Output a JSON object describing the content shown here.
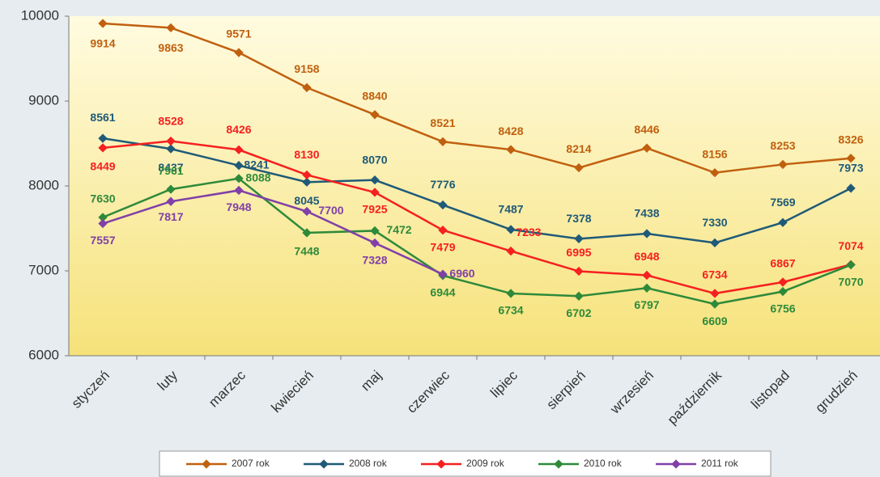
{
  "chart_data": {
    "type": "line",
    "categories": [
      "styczeń",
      "luty",
      "marzec",
      "kwiecień",
      "maj",
      "czerwiec",
      "lipiec",
      "sierpień",
      "wrzesień",
      "październik",
      "listopad",
      "grudzień"
    ],
    "series": [
      {
        "name": "2007 rok",
        "color": "#c0600f",
        "values": [
          9914,
          9863,
          9571,
          9158,
          8840,
          8521,
          8428,
          8214,
          8446,
          8156,
          8253,
          8326
        ]
      },
      {
        "name": "2008 rok",
        "color": "#1f5a78",
        "values": [
          8561,
          8437,
          8241,
          8045,
          8070,
          7776,
          7487,
          7378,
          7438,
          7330,
          7569,
          7973
        ]
      },
      {
        "name": "2009 rok",
        "color": "#f52020",
        "values": [
          8449,
          8528,
          8426,
          8130,
          7925,
          7479,
          7233,
          6995,
          6948,
          6734,
          6867,
          7074
        ]
      },
      {
        "name": "2010 rok",
        "color": "#2e8a3a",
        "values": [
          7630,
          7961,
          8088,
          7448,
          7472,
          6944,
          6734,
          6702,
          6797,
          6609,
          6756,
          7070
        ]
      },
      {
        "name": "2011 rok",
        "color": "#8040a8",
        "values": [
          7557,
          7817,
          7948,
          7700,
          7328,
          6960,
          null,
          null,
          null,
          null,
          null,
          null
        ]
      }
    ],
    "ylim": [
      6000,
      10000
    ],
    "yticks": [
      6000,
      7000,
      8000,
      9000,
      10000
    ],
    "grid": false
  }
}
